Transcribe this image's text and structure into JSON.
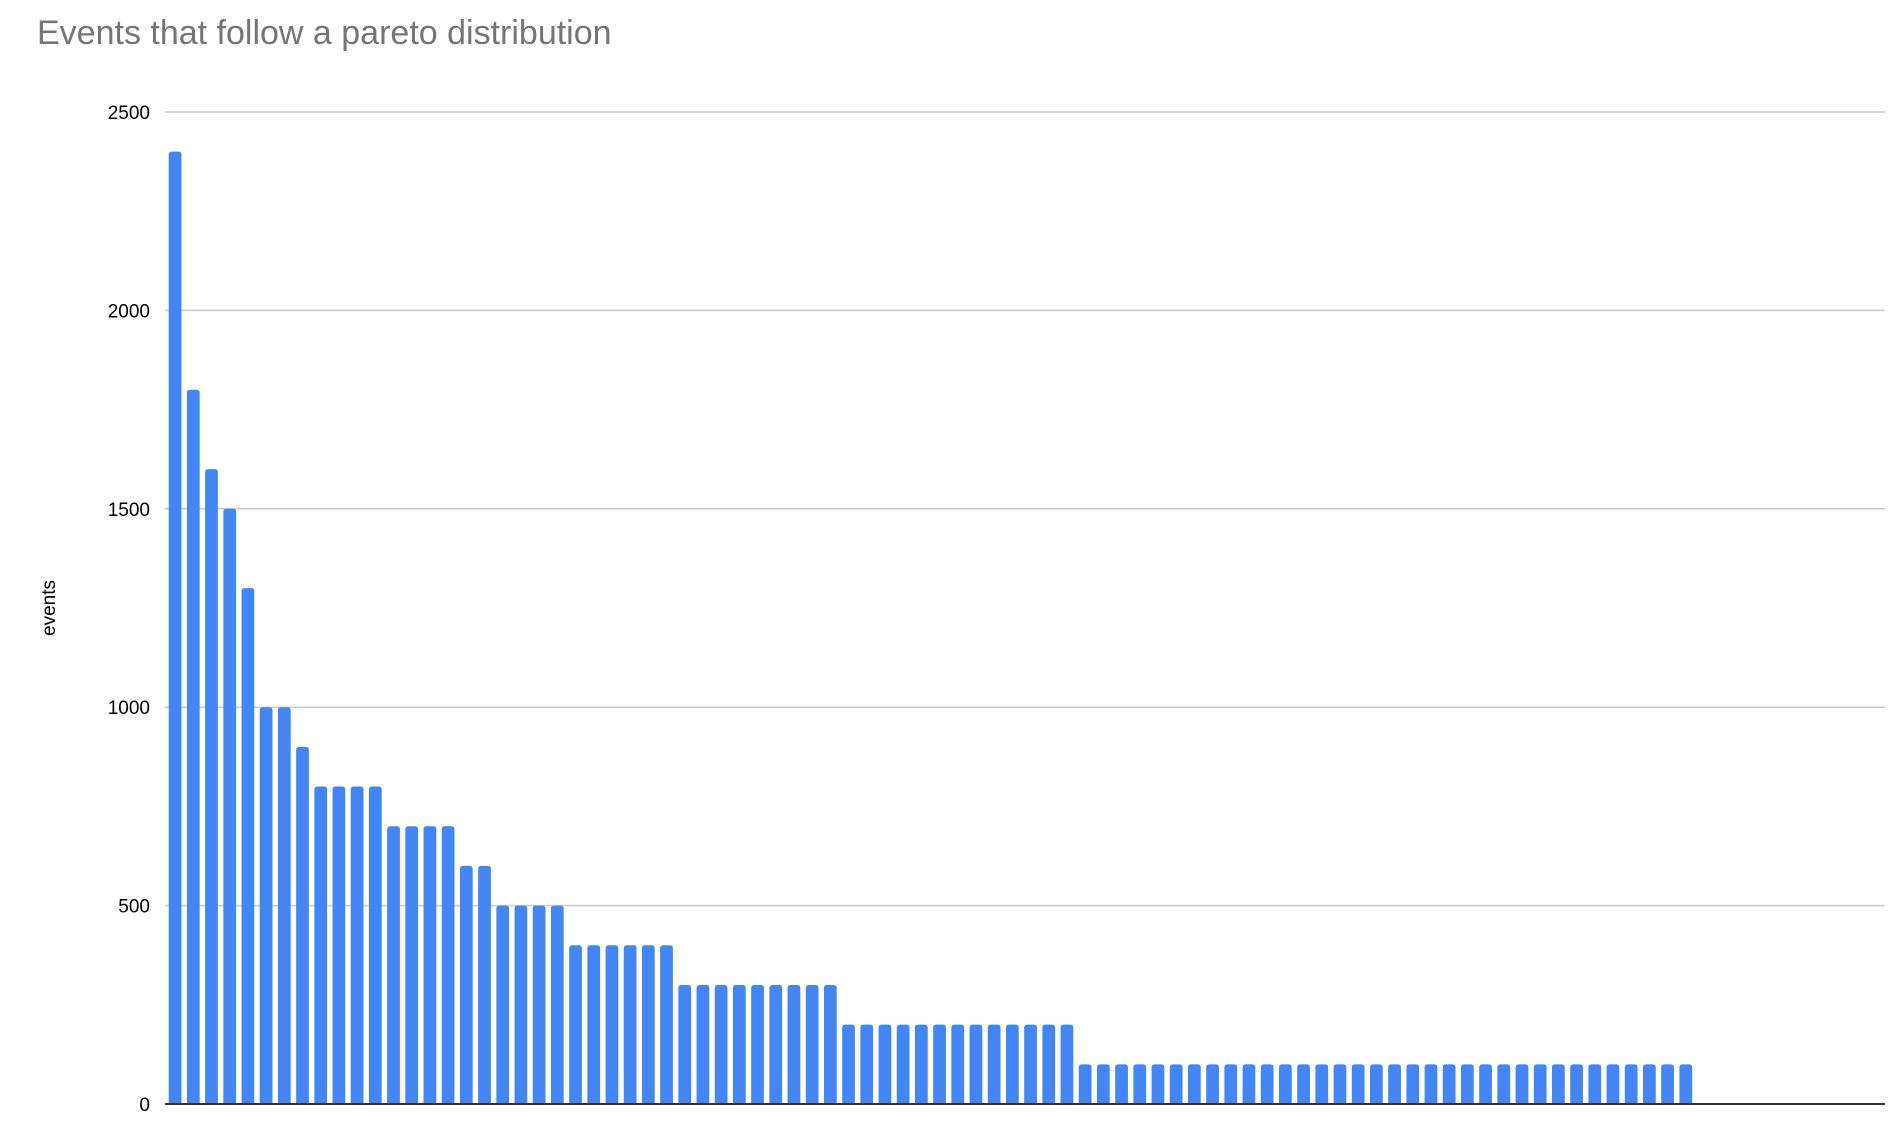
{
  "chart_data": {
    "type": "bar",
    "title": "Events that follow a pareto distribution",
    "xlabel": "",
    "ylabel": "events",
    "ylim": [
      0,
      2500
    ],
    "yticks": [
      "0",
      "500",
      "1000",
      "1500",
      "2000",
      "2500"
    ],
    "grid": true,
    "legend": "none",
    "bar_color": "#4285f4",
    "gridline_color": "#cccccc",
    "title_color": "#757575",
    "values": [
      2400,
      1800,
      1600,
      1500,
      1300,
      1000,
      1000,
      900,
      800,
      800,
      800,
      800,
      700,
      700,
      700,
      700,
      600,
      600,
      500,
      500,
      500,
      500,
      400,
      400,
      400,
      400,
      400,
      400,
      300,
      300,
      300,
      300,
      300,
      300,
      300,
      300,
      300,
      200,
      200,
      200,
      200,
      200,
      200,
      200,
      200,
      200,
      200,
      200,
      200,
      200,
      100,
      100,
      100,
      100,
      100,
      100,
      100,
      100,
      100,
      100,
      100,
      100,
      100,
      100,
      100,
      100,
      100,
      100,
      100,
      100,
      100,
      100,
      100,
      100,
      100,
      100,
      100,
      100,
      100,
      100,
      100,
      100,
      100,
      100
    ]
  }
}
